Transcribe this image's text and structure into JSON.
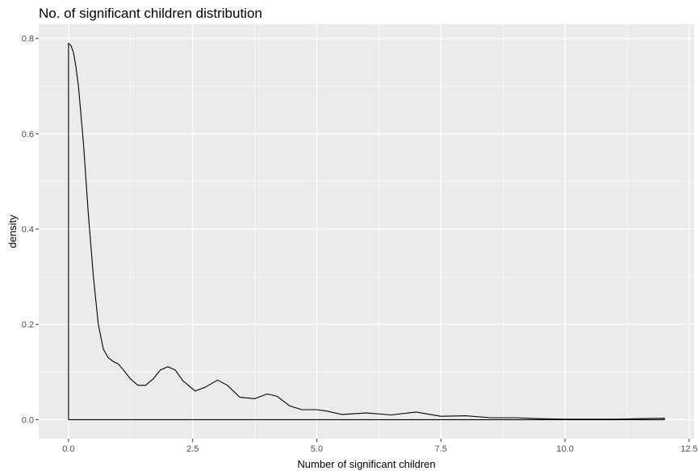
{
  "chart_data": {
    "type": "density",
    "title": "No. of significant children distribution",
    "xlabel": "Number of significant children",
    "ylabel": "density",
    "xlim": [
      -0.6,
      12.6
    ],
    "ylim": [
      -0.04,
      0.83
    ],
    "x_ticks": [
      0,
      2.5,
      5,
      7.5,
      10,
      12.5
    ],
    "x_tick_labels": [
      "0.0",
      "2.5",
      "5.0",
      "7.5",
      "10.0",
      "12.5"
    ],
    "y_ticks": [
      0,
      0.2,
      0.4,
      0.6,
      0.8
    ],
    "y_tick_labels": [
      "0.0",
      "0.2",
      "0.4",
      "0.6",
      "0.8"
    ],
    "grid": true,
    "colors": {
      "panel": "#ebebeb",
      "grid": "#ffffff",
      "line": "#000000",
      "tick": "#4d4d4d"
    },
    "series": [
      {
        "x": [
          0,
          0.05,
          0.1,
          0.15,
          0.2,
          0.3,
          0.4,
          0.5,
          0.6,
          0.7,
          0.8,
          0.9,
          1.0,
          1.1,
          1.25,
          1.4,
          1.55,
          1.7,
          1.85,
          2.0,
          2.15,
          2.3,
          2.55,
          2.75,
          3.0,
          3.2,
          3.45,
          3.75,
          4.0,
          4.2,
          4.45,
          4.7,
          5.0,
          5.2,
          5.5,
          6.0,
          6.5,
          7.0,
          7.5,
          8.0,
          8.5,
          9.0,
          9.5,
          10.0,
          10.5,
          11.0,
          11.5,
          12.0
        ],
        "y": [
          0.79,
          0.785,
          0.77,
          0.74,
          0.7,
          0.58,
          0.43,
          0.3,
          0.2,
          0.148,
          0.13,
          0.122,
          0.117,
          0.105,
          0.085,
          0.072,
          0.072,
          0.085,
          0.104,
          0.111,
          0.104,
          0.082,
          0.06,
          0.068,
          0.083,
          0.072,
          0.047,
          0.044,
          0.054,
          0.049,
          0.029,
          0.021,
          0.021,
          0.018,
          0.011,
          0.014,
          0.01,
          0.016,
          0.007,
          0.008,
          0.004,
          0.004,
          0.002,
          0.001,
          0.001,
          0.001,
          0.002,
          0.003
        ]
      }
    ]
  }
}
